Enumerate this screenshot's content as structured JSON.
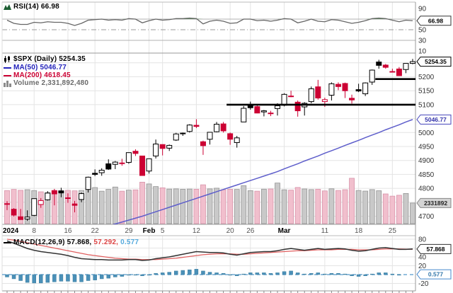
{
  "legends": {
    "rsi": "RSI(14) 66.98",
    "spx": "$SPX (Daily) 5254.35",
    "ma50": "MA(50) 5046.77",
    "ma200": "MA(200) 4618.45",
    "volume": "Volume 2,331,892,480",
    "macd_name": "MACD(12,26,9)",
    "macd_value": "57.868,",
    "macd_signal": "57.292,",
    "macd_hist": "0.577"
  },
  "axes": {
    "rsi_ticks": [
      90,
      50,
      30,
      10
    ],
    "price_ticks": [
      5200,
      5150,
      5100,
      5000,
      4950,
      4900,
      4850,
      4800,
      4700
    ],
    "macd_ticks": [
      80,
      40,
      20,
      -20
    ],
    "label_boxes": {
      "rsi": "66.98",
      "price": "5254.35",
      "ma50": "5046.77",
      "volume": "2331892",
      "macd": "57.868",
      "hist": "0.577"
    }
  },
  "colors": {
    "up": "#000000",
    "down": "#cc0033",
    "ma50": "#5e5ecb",
    "ma200": "#cc0033",
    "vol_up_fill": "#c9c9c9",
    "vol_up_stroke": "#949494",
    "vol_down_fill": "#f1bfcd",
    "vol_down_stroke": "#d893a9",
    "macd_line": "#333333",
    "signal_line": "#e06060",
    "hist_fill": "#4a90b8",
    "hist_zero": "#5599cc",
    "rsi_line": "#666666",
    "rsi_fill": "#3b7a3b",
    "grid": "#e4e4e4",
    "band": "#b0b0b0",
    "border": "#999999",
    "annotation": "#000000",
    "axis_text": "#333333"
  },
  "chart_data": [
    {
      "type": "line",
      "title": "RSI(14)",
      "current": 66.98,
      "ylim": [
        0,
        100
      ],
      "overbought": 70,
      "midline": 50,
      "oversold": 30,
      "values": [
        68,
        62,
        60,
        60,
        64,
        63,
        65,
        64,
        64,
        62,
        58,
        62,
        68,
        69,
        70,
        68,
        69,
        68,
        71,
        70,
        63,
        67,
        70,
        68,
        69,
        71,
        71,
        72,
        71,
        61,
        66,
        68,
        66,
        62,
        63,
        70,
        70,
        67,
        68,
        66,
        68,
        71,
        70,
        63,
        66,
        70,
        66,
        65,
        69,
        68,
        65,
        62,
        64,
        67,
        71,
        72,
        71,
        68,
        65,
        68,
        66.98
      ]
    },
    {
      "type": "candlestick",
      "title": "$SPX (Daily)",
      "last_close": 5254.35,
      "ma50_last": 5046.77,
      "ma200_last": 4618.45,
      "volume_last": 2331892480,
      "ylim": [
        4667,
        5272
      ],
      "x": [
        "Jan 2",
        "Jan 3",
        "Jan 4",
        "Jan 5",
        "Jan 8",
        "Jan 9",
        "Jan 10",
        "Jan 11",
        "Jan 12",
        "Jan 16",
        "Jan 17",
        "Jan 18",
        "Jan 19",
        "Jan 22",
        "Jan 23",
        "Jan 24",
        "Jan 25",
        "Jan 26",
        "Jan 29",
        "Jan 30",
        "Jan 31",
        "Feb 1",
        "Feb 2",
        "Feb 5",
        "Feb 6",
        "Feb 7",
        "Feb 8",
        "Feb 9",
        "Feb 12",
        "Feb 13",
        "Feb 14",
        "Feb 15",
        "Feb 16",
        "Feb 20",
        "Feb 21",
        "Feb 22",
        "Feb 23",
        "Feb 26",
        "Feb 27",
        "Feb 28",
        "Feb 29",
        "Mar 1",
        "Mar 4",
        "Mar 5",
        "Mar 6",
        "Mar 7",
        "Mar 8",
        "Mar 11",
        "Mar 12",
        "Mar 13",
        "Mar 14",
        "Mar 15",
        "Mar 18",
        "Mar 19",
        "Mar 20",
        "Mar 21",
        "Mar 22",
        "Mar 25",
        "Mar 26",
        "Mar 27",
        "Mar 28"
      ],
      "x_ticks": [
        {
          "i": 0,
          "label": "2024",
          "bold": true
        },
        {
          "i": 4,
          "label": "8",
          "bold": false
        },
        {
          "i": 9,
          "label": "16",
          "bold": false
        },
        {
          "i": 13,
          "label": "22",
          "bold": false
        },
        {
          "i": 18,
          "label": "29",
          "bold": false
        },
        {
          "i": 21,
          "label": "Feb",
          "bold": true
        },
        {
          "i": 23,
          "label": "5",
          "bold": false
        },
        {
          "i": 28,
          "label": "12",
          "bold": false
        },
        {
          "i": 33,
          "label": "20",
          "bold": false
        },
        {
          "i": 36,
          "label": "26",
          "bold": false
        },
        {
          "i": 41,
          "label": "Mar",
          "bold": true
        },
        {
          "i": 47,
          "label": "11",
          "bold": false
        },
        {
          "i": 52,
          "label": "18",
          "bold": false
        },
        {
          "i": 57,
          "label": "25",
          "bold": false
        }
      ],
      "ohlc": [
        [
          4745,
          4754,
          4722,
          4743
        ],
        [
          4725,
          4729,
          4699,
          4704
        ],
        [
          4698,
          4726,
          4687,
          4688
        ],
        [
          4690,
          4721,
          4683,
          4697
        ],
        [
          4703,
          4764,
          4700,
          4763
        ],
        [
          4742,
          4765,
          4730,
          4756
        ],
        [
          4759,
          4790,
          4756,
          4783
        ],
        [
          4792,
          4798,
          4739,
          4780
        ],
        [
          4791,
          4802,
          4768,
          4784
        ],
        [
          4766,
          4782,
          4748,
          4766
        ],
        [
          4744,
          4755,
          4714,
          4739
        ],
        [
          4760,
          4785,
          4750,
          4781
        ],
        [
          4796,
          4842,
          4785,
          4840
        ],
        [
          4854,
          4868,
          4844,
          4850
        ],
        [
          4856,
          4872,
          4845,
          4865
        ],
        [
          4888,
          4904,
          4866,
          4869
        ],
        [
          4886,
          4898,
          4869,
          4894
        ],
        [
          4889,
          4906,
          4881,
          4891
        ],
        [
          4893,
          4929,
          4888,
          4928
        ],
        [
          4933,
          4940,
          4916,
          4925
        ],
        [
          4916,
          4917,
          4846,
          4846
        ],
        [
          4862,
          4907,
          4853,
          4906
        ],
        [
          4916,
          4975,
          4907,
          4959
        ],
        [
          4957,
          4958,
          4918,
          4943
        ],
        [
          4944,
          4957,
          4934,
          4954
        ],
        [
          4973,
          4999,
          4970,
          4995
        ],
        [
          4996,
          5000,
          4988,
          4998
        ],
        [
          5004,
          5030,
          5000,
          5027
        ],
        [
          5026,
          5048,
          5016,
          5022
        ],
        [
          4967,
          4971,
          4920,
          4953
        ],
        [
          4976,
          5002,
          4957,
          5001
        ],
        [
          5003,
          5038,
          5001,
          5030
        ],
        [
          5031,
          5038,
          5000,
          5006
        ],
        [
          4996,
          5000,
          4956,
          4976
        ],
        [
          4964,
          4988,
          4946,
          4981
        ],
        [
          5038,
          5095,
          5038,
          5087
        ],
        [
          5100,
          5111,
          5082,
          5089
        ],
        [
          5093,
          5098,
          5069,
          5070
        ],
        [
          5074,
          5081,
          5058,
          5078
        ],
        [
          5068,
          5078,
          5059,
          5070
        ],
        [
          5086,
          5105,
          5061,
          5096
        ],
        [
          5098,
          5141,
          5094,
          5137
        ],
        [
          5131,
          5150,
          5127,
          5131
        ],
        [
          5109,
          5115,
          5057,
          5078
        ],
        [
          5092,
          5109,
          5061,
          5105
        ],
        [
          5111,
          5165,
          5105,
          5157
        ],
        [
          5164,
          5189,
          5118,
          5124
        ],
        [
          5111,
          5125,
          5092,
          5118
        ],
        [
          5134,
          5180,
          5115,
          5175
        ],
        [
          5173,
          5180,
          5152,
          5165
        ],
        [
          5176,
          5179,
          5124,
          5150
        ],
        [
          5123,
          5136,
          5104,
          5117
        ],
        [
          5154,
          5175,
          5145,
          5149
        ],
        [
          5139,
          5180,
          5131,
          5178
        ],
        [
          5181,
          5226,
          5171,
          5224
        ],
        [
          5253,
          5261,
          5229,
          5241
        ],
        [
          5242,
          5246,
          5229,
          5234
        ],
        [
          5219,
          5229,
          5216,
          5218
        ],
        [
          5228,
          5235,
          5203,
          5204
        ],
        [
          5226,
          5249,
          5213,
          5248
        ],
        [
          5248,
          5264,
          5245,
          5254.35
        ]
      ],
      "volume_billions": [
        3.74,
        3.87,
        3.77,
        3.84,
        3.74,
        3.6,
        3.5,
        3.61,
        3.43,
        3.76,
        3.71,
        3.75,
        3.87,
        4.08,
        3.67,
        3.88,
        4.14,
        3.67,
        3.79,
        3.82,
        4.69,
        4.49,
        4.19,
        4.05,
        3.91,
        3.93,
        3.89,
        3.91,
        3.89,
        4.39,
        3.93,
        4.01,
        3.83,
        3.89,
        3.87,
        4.3,
        3.73,
        3.67,
        3.9,
        3.92,
        4.59,
        3.83,
        3.79,
        4.09,
        3.92,
        3.85,
        3.89,
        3.7,
        3.94,
        3.75,
        3.84,
        5.13,
        3.75,
        3.68,
        3.85,
        3.72,
        3.36,
        3.11,
        3.21,
        3.41,
        2.33
      ],
      "ma50": [
        4560,
        4567,
        4574,
        4581,
        4588,
        4595,
        4602,
        4609,
        4616,
        4623,
        4630,
        4637,
        4644,
        4651,
        4658,
        4665,
        4672,
        4679,
        4686,
        4693,
        4700,
        4708,
        4716,
        4724,
        4732,
        4740,
        4748,
        4756,
        4764,
        4772,
        4780,
        4788,
        4796,
        4804,
        4812,
        4820,
        4828,
        4836,
        4844,
        4852,
        4860,
        4870,
        4879,
        4888,
        4898,
        4907,
        4916,
        4926,
        4935,
        4944,
        4954,
        4963,
        4972,
        4982,
        4991,
        5000,
        5010,
        5019,
        5028,
        5038,
        5046.77
      ],
      "annotations": [
        {
          "type": "hline",
          "price": 5100,
          "from_index": 33
        },
        {
          "type": "hline",
          "price": 5192,
          "from_index": 55
        }
      ]
    },
    {
      "type": "line",
      "title": "MACD(12,26,9)",
      "current": {
        "macd": 57.868,
        "signal": 57.292,
        "hist": 0.577
      },
      "ylim": [
        -25,
        85
      ],
      "macd": [
        76,
        71,
        65,
        59,
        55,
        52,
        50,
        48,
        46,
        43,
        39,
        36,
        35,
        34,
        34,
        33,
        33,
        33,
        34,
        34,
        32,
        33,
        36,
        38,
        40,
        43,
        46,
        49,
        52,
        51,
        50,
        50,
        49,
        46,
        44,
        47,
        50,
        51,
        52,
        52,
        54,
        57,
        59,
        57,
        55,
        57,
        59,
        57,
        58,
        59,
        58,
        55,
        53,
        54,
        57,
        60,
        61,
        59,
        57,
        57,
        57.868
      ],
      "signal": [
        80,
        78,
        75,
        72,
        69,
        66,
        63,
        60,
        57,
        54,
        51,
        48,
        45,
        43,
        41,
        39,
        37,
        36,
        35,
        35,
        34,
        34,
        34,
        35,
        36,
        37,
        39,
        41,
        43,
        45,
        46,
        47,
        47,
        47,
        46,
        46,
        47,
        48,
        49,
        50,
        51,
        52,
        53,
        54,
        54,
        55,
        56,
        56,
        56,
        57,
        57,
        57,
        56,
        56,
        56,
        57,
        58,
        58,
        58,
        57.5,
        57.292
      ]
    }
  ]
}
